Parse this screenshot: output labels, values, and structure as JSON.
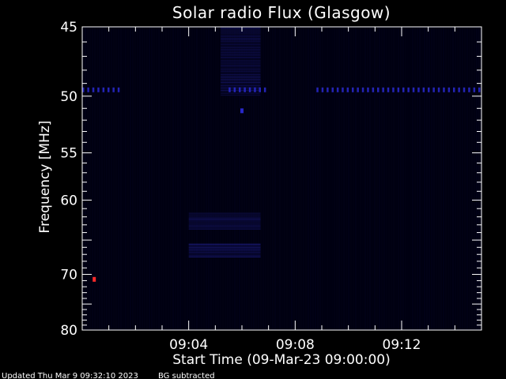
{
  "chart_data": {
    "type": "heatmap",
    "title": "Solar radio Flux (Glasgow)",
    "xlabel": "Start Time (09-Mar-23 09:00:00)",
    "ylabel": "Frequency [MHz]",
    "x_unit": "minutes",
    "xlim": [
      0,
      15
    ],
    "ylim": [
      45,
      80
    ],
    "y_inverted": true,
    "x_tick_values": [
      4,
      8,
      12
    ],
    "x_tick_labels": [
      "09:04",
      "09:08",
      "09:12"
    ],
    "y_tick_values": [
      45,
      50,
      55,
      60,
      70,
      80
    ],
    "y_tick_labels": [
      "45",
      "50",
      "55",
      "60",
      "70",
      "80"
    ],
    "y_scale": "reciprocal",
    "colors": {
      "background": "#000000",
      "plot_background": "#000010",
      "weak_emission": "#0a0a46",
      "moderate_emission": "#1e1e8c",
      "strong_emission": "#2828c8",
      "peak": "#ff2a2a"
    },
    "features": [
      {
        "kind": "broadband_emission",
        "t_start": 5.2,
        "t_end": 6.7,
        "f_low": 45,
        "f_high": 50,
        "intensity": 0.55
      },
      {
        "kind": "emission_band",
        "t_start": 4.0,
        "t_end": 6.7,
        "f_low": 61.5,
        "f_high": 63.5,
        "intensity": 0.7
      },
      {
        "kind": "emission_band",
        "t_start": 4.0,
        "t_end": 6.7,
        "f_low": 65.5,
        "f_high": 67.5,
        "intensity": 0.8
      },
      {
        "kind": "interference_line",
        "t_start": 0.0,
        "t_end": 1.5,
        "f": 49.5,
        "intensity": 0.9
      },
      {
        "kind": "interference_line",
        "t_start": 5.5,
        "t_end": 7.0,
        "f": 49.5,
        "intensity": 0.9
      },
      {
        "kind": "interference_line",
        "t_start": 8.8,
        "t_end": 15.0,
        "f": 49.5,
        "intensity": 0.9
      },
      {
        "kind": "point",
        "t": 6.0,
        "f": 51.2,
        "intensity": 1.0
      },
      {
        "kind": "point",
        "t": 0.45,
        "f": 70.8,
        "intensity": 1.2
      }
    ]
  },
  "footer": {
    "updated": "Updated Thu Mar  9 09:32:10 2023",
    "note": "BG subtracted"
  }
}
